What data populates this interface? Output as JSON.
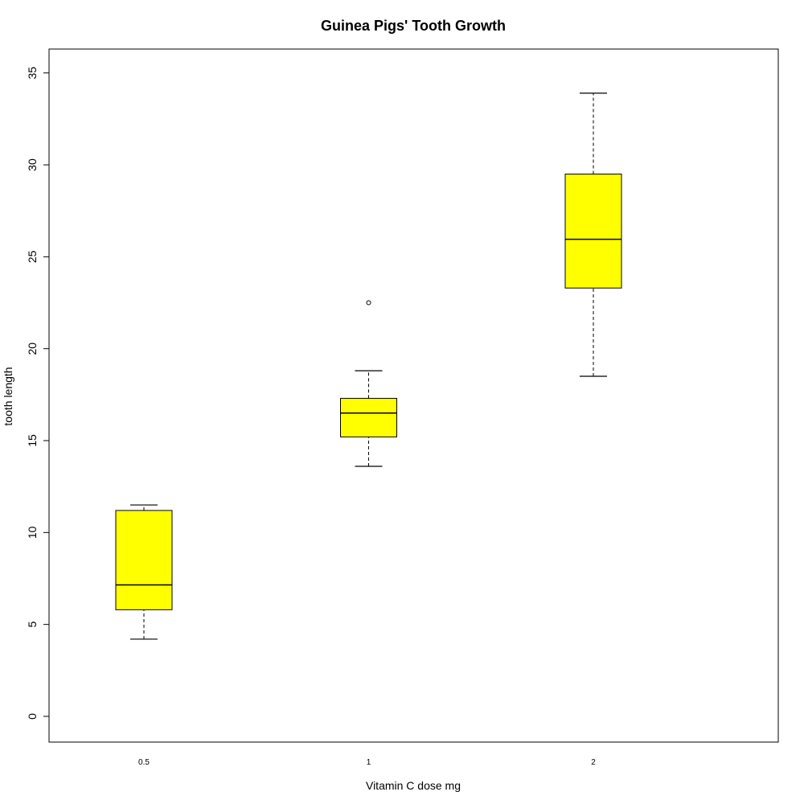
{
  "chart_data": {
    "type": "boxplot",
    "title": "Guinea Pigs' Tooth Growth",
    "xlabel": "Vitamin C dose mg",
    "ylabel": "tooth length",
    "ylim": [
      -1.4,
      36.3
    ],
    "y_ticks": [
      0,
      5,
      10,
      15,
      20,
      25,
      30,
      35
    ],
    "categories": [
      "0.5",
      "1",
      "2"
    ],
    "box_fill_color": "#ffff00",
    "grid": false,
    "legend": "none",
    "boxes": [
      {
        "category": "0.5",
        "min": 4.2,
        "q1": 5.8,
        "median": 7.15,
        "q3": 11.2,
        "max": 11.5,
        "outliers": []
      },
      {
        "category": "1",
        "min": 13.6,
        "q1": 15.2,
        "median": 16.5,
        "q3": 17.3,
        "max": 18.8,
        "outliers": [
          22.5
        ]
      },
      {
        "category": "2",
        "min": 18.5,
        "q1": 23.3,
        "median": 25.95,
        "q3": 29.5,
        "max": 33.9,
        "outliers": []
      }
    ]
  }
}
